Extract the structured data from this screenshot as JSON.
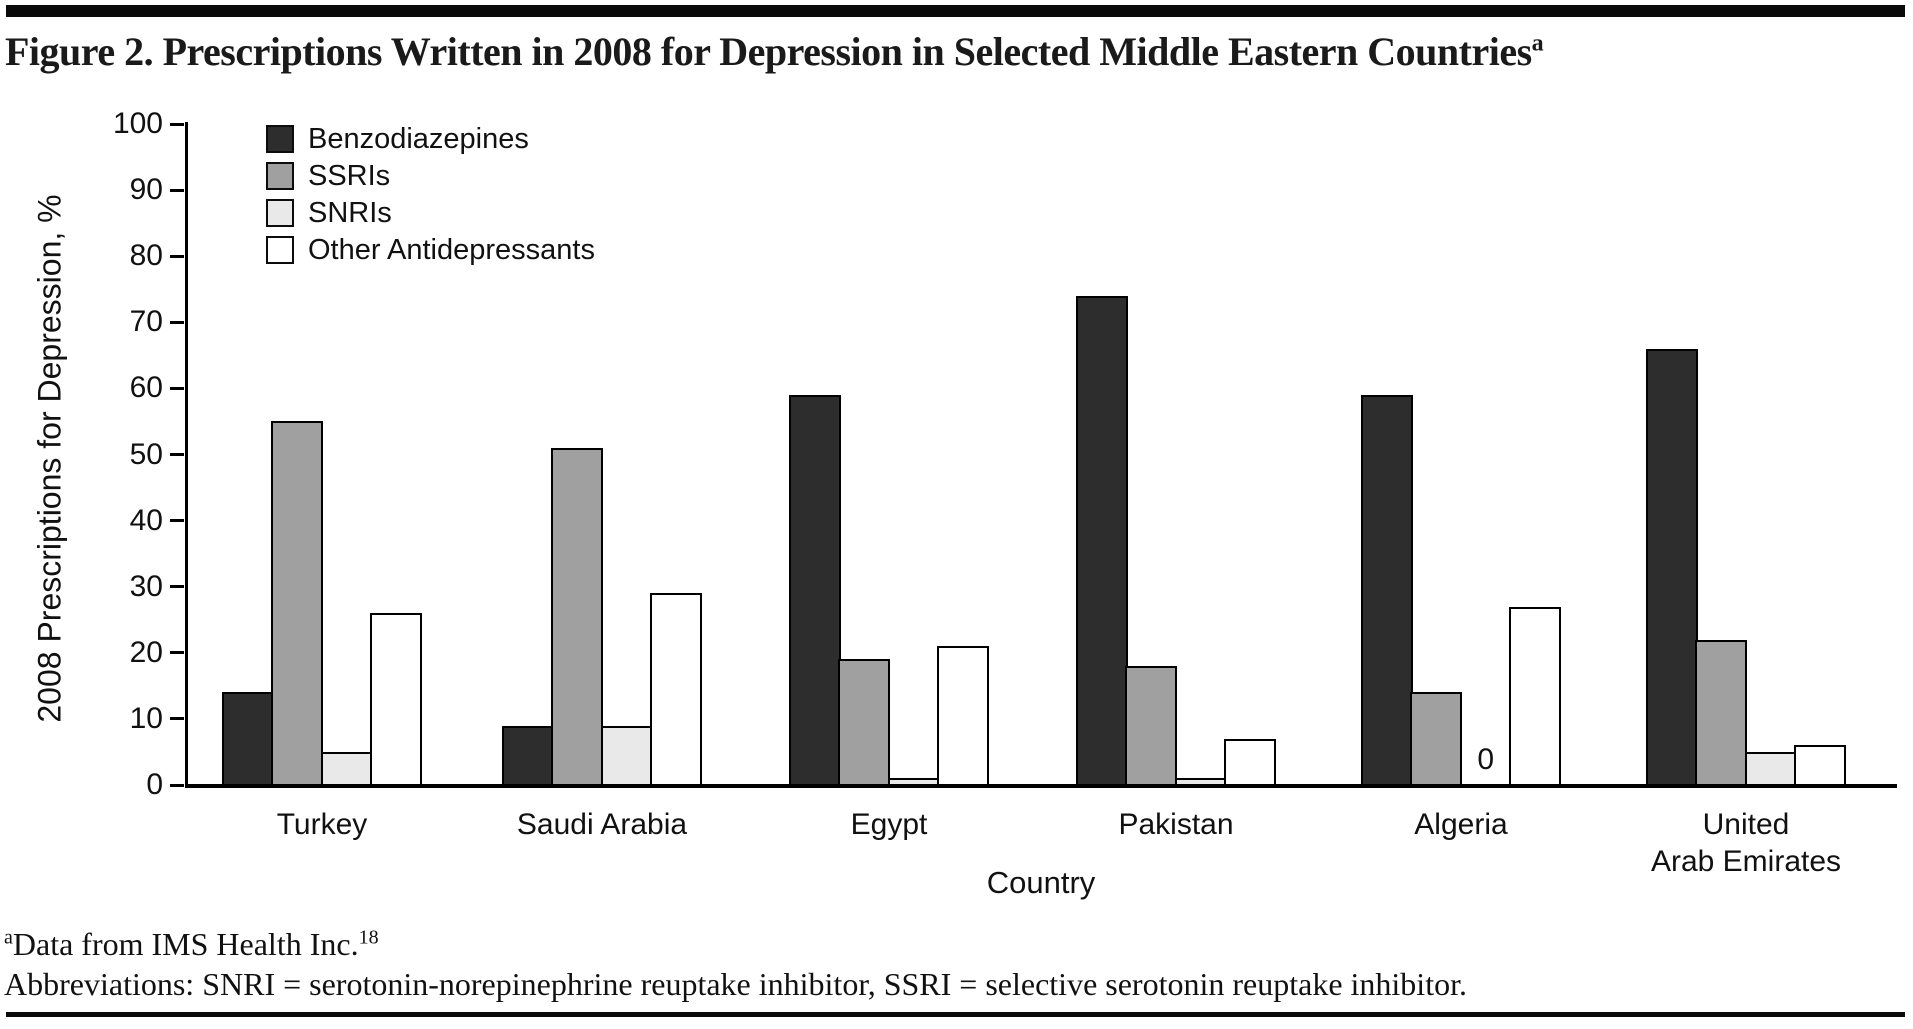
{
  "header": {
    "title": "Figure 2. Prescriptions Written in 2008 for Depression in Selected Middle Eastern Countries",
    "title_superscript": "a"
  },
  "chart_data": {
    "type": "bar",
    "title": "Figure 2. Prescriptions Written in 2008 for Depression in Selected Middle Eastern Countries",
    "categories": [
      "Turkey",
      "Saudi Arabia",
      "Egypt",
      "Pakistan",
      "Algeria",
      "United\nArab Emirates"
    ],
    "series": [
      {
        "name": "Benzodiazepines",
        "color": "#2d2d2d",
        "values": [
          14,
          9,
          59,
          74,
          59,
          66
        ]
      },
      {
        "name": "SSRIs",
        "color": "#a0a0a0",
        "values": [
          55,
          51,
          19,
          18,
          14,
          22
        ]
      },
      {
        "name": "SNRIs",
        "color": "#e9e9e9",
        "values": [
          5,
          9,
          1,
          1,
          0,
          5
        ]
      },
      {
        "name": "Other Antidepressants",
        "color": "#ffffff",
        "values": [
          26,
          29,
          21,
          7,
          27,
          6
        ]
      }
    ],
    "xlabel": "Country",
    "ylabel": "2008 Prescriptions for Depression, %",
    "ylim": [
      0,
      100
    ],
    "ytick_step": 10,
    "grid": false,
    "legend_position": "top-left-inside",
    "bar_outline_color": "#000000",
    "annotations": [
      {
        "text": "0",
        "category": "Algeria",
        "series": "SNRIs"
      }
    ]
  },
  "footnotes": {
    "fn1_sup": "a",
    "fn1_text": "Data from IMS Health Inc.",
    "fn1_ref_sup": "18",
    "fn2_text": "Abbreviations: SNRI = serotonin-norepinephrine reuptake inhibitor, SSRI = selective serotonin reuptake inhibitor."
  }
}
